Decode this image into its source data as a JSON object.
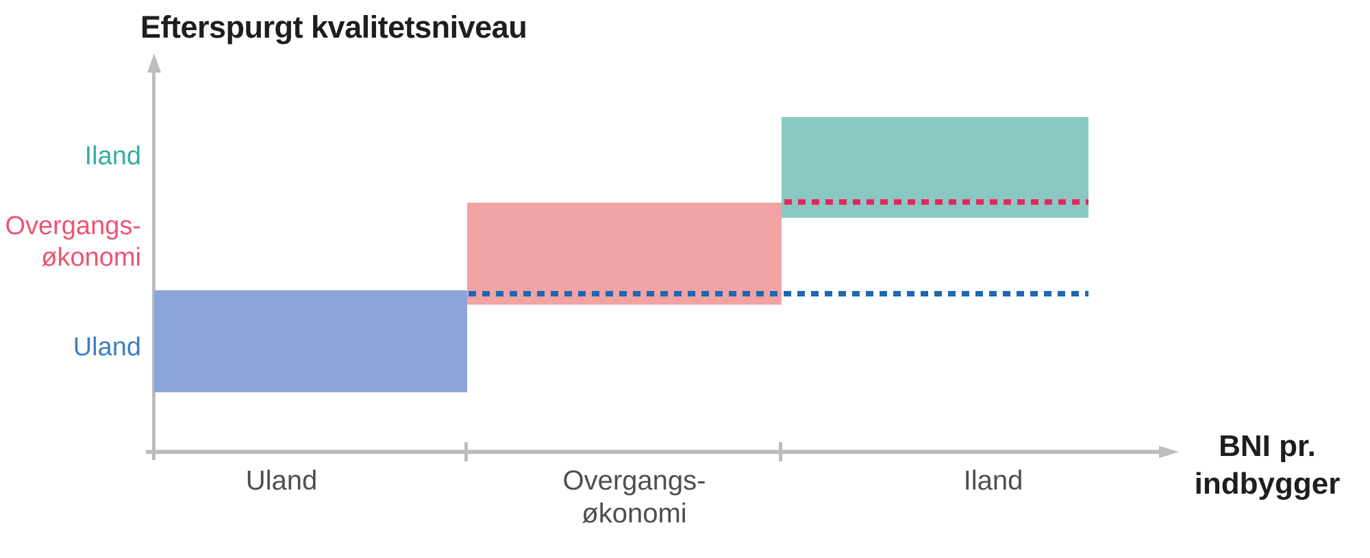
{
  "title": "Efterspurgt kvalitetsniveau",
  "colors": {
    "axis": "#BDBDBD",
    "x_tick_label": "#4E4E50",
    "title_text": "#1F1D1E",
    "band_uland": "#8CA6DB",
    "band_overgang": "#F2A3A4",
    "band_iland": "#8BC8C2",
    "dash_uland_level": "#1E68B2",
    "dash_overgang_level": "#E5265C",
    "ylabel_iland": "#35AEA3",
    "ylabel_overgang": "#EE5471",
    "ylabel_uland": "#3C7EC2"
  },
  "y_axis": {
    "label_iland": "Iland",
    "label_overgang_line1": "Overgangs-",
    "label_overgang_line2": "økonomi",
    "label_uland": "Uland"
  },
  "x_axis": {
    "label_uland": "Uland",
    "label_overgang_line1": "Overgangs-",
    "label_overgang_line2": "økonomi",
    "label_iland": "Iland",
    "title_line1": "BNI pr.",
    "title_line2": "indbygger"
  },
  "chart_data": {
    "type": "bar",
    "variant": "stepped-quality-bands",
    "title": "Efterspurgt kvalitetsniveau",
    "xlabel": "BNI pr. indbygger",
    "ylabel": "Efterspurgt kvalitetsniveau",
    "categories": [
      "Uland",
      "Overgangs-økonomi",
      "Iland"
    ],
    "axes_numeric": false,
    "grid": false,
    "legend": "none",
    "x_tick_positions_pct": [
      30.6,
      61.4
    ],
    "bands": [
      {
        "name": "Uland",
        "color": "#8CA6DB",
        "x_pct": [
          0.1,
          30.6
        ],
        "y_pct": [
          15.1,
          40.9
        ],
        "note": "lowest demanded quality band, sits on y-axis"
      },
      {
        "name": "Overgangsøkonomi",
        "color": "#F2A3A4",
        "x_pct": [
          30.6,
          61.4
        ],
        "y_pct": [
          37.3,
          63.1
        ],
        "note": "middle band, bottom overlaps top level of Uland band"
      },
      {
        "name": "Iland",
        "color": "#8BC8C2",
        "x_pct": [
          61.4,
          91.4
        ],
        "y_pct": [
          59.3,
          84.7
        ],
        "note": "highest band, bottom overlaps top level of Overgangsøkonomi band"
      }
    ],
    "reference_lines": [
      {
        "style": "dotted",
        "color": "#1E68B2",
        "level_pct": 40.3,
        "x_pct": [
          30.6,
          91.4
        ],
        "meaning": "top quality level of Uland band extended right"
      },
      {
        "style": "dotted",
        "color": "#E5265C",
        "level_pct": 63.2,
        "x_pct": [
          61.4,
          91.4
        ],
        "meaning": "top quality level of Overgangsøkonomi band extended right"
      }
    ]
  }
}
